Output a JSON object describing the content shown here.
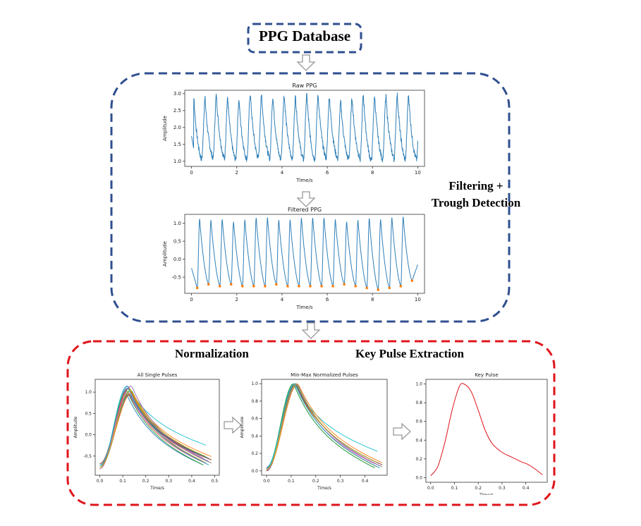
{
  "header": {
    "title": "PPG Database"
  },
  "stage_labels": {
    "filtering_line1": "Filtering +",
    "filtering_line2": "Trough Detection",
    "normalization": "Normalization",
    "key_pulse_extraction": "Key Pulse Extraction"
  },
  "colors": {
    "blue_box": "#2f4f8f",
    "red_box": "#e0141b",
    "line": "#2e7fb8",
    "trough": "#ff7f0e",
    "key": "#e0141b"
  },
  "chart_data": [
    {
      "type": "line",
      "title": "Raw PPG",
      "xlabel": "Time/s",
      "ylabel": "Amplitude",
      "xlim": [
        -0.3,
        10.3
      ],
      "ylim": [
        0.85,
        3.1
      ],
      "xticks": [
        0,
        2,
        4,
        6,
        8,
        10
      ],
      "yticks": [
        1.0,
        1.5,
        2.0,
        2.5,
        3.0
      ],
      "ytick_labels": [
        "1.0",
        "1.5",
        "2.0",
        "2.5",
        "3.0"
      ],
      "series": [
        {
          "values_desc": "quasi-periodic PPG waveform, about 19 beats in 10 s, range 1.0 to 3.0",
          "peak_times": [
            0.45,
            0.95,
            1.45,
            1.95,
            2.45,
            2.95,
            3.45,
            3.95,
            4.45,
            4.95,
            5.45,
            5.95,
            6.45,
            6.95,
            7.45,
            7.95,
            8.45,
            8.95,
            9.45
          ],
          "peak_values": [
            2.9,
            2.85,
            2.95,
            2.85,
            2.8,
            3.0,
            2.95,
            2.9,
            2.95,
            2.9,
            2.95,
            2.95,
            2.9,
            2.75,
            2.85,
            2.95,
            2.9,
            2.9,
            2.95
          ],
          "trough_values": [
            1.05,
            1.1,
            1.1,
            1.05,
            1.05,
            1.1,
            1.1,
            1.05,
            1.1,
            1.05,
            1.05,
            1.1,
            1.1,
            1.05,
            1.1,
            1.0,
            1.05,
            1.1,
            1.05
          ]
        }
      ]
    },
    {
      "type": "line",
      "title": "Filtered PPG",
      "xlabel": "Time/s",
      "ylabel": "Amplitude",
      "xlim": [
        -0.3,
        10.3
      ],
      "ylim": [
        -0.95,
        1.25
      ],
      "xticks": [
        0,
        2,
        4,
        6,
        8,
        10
      ],
      "yticks": [
        -0.5,
        0.0,
        0.5,
        1.0
      ],
      "ytick_labels": [
        "-0.5",
        "0.0",
        "0.5",
        "1.0"
      ],
      "series": [
        {
          "name": "",
          "peak_values": [
            1.1,
            1.1,
            1.1,
            1.05,
            1.1,
            1.15,
            1.15,
            1.1,
            1.1,
            1.15,
            1.15,
            1.15,
            1.1,
            1.05,
            1.1,
            1.15,
            1.1,
            1.15,
            1.15
          ],
          "trough_times": [
            0.25,
            0.75,
            1.25,
            1.75,
            2.25,
            2.75,
            3.25,
            3.75,
            4.25,
            4.75,
            5.25,
            5.75,
            6.25,
            6.75,
            7.25,
            7.75,
            8.25,
            8.75,
            9.25,
            9.75
          ],
          "trough_values": [
            -0.8,
            -0.7,
            -0.75,
            -0.7,
            -0.75,
            -0.75,
            -0.75,
            -0.7,
            -0.75,
            -0.75,
            -0.75,
            -0.75,
            -0.75,
            -0.7,
            -0.75,
            -0.8,
            -0.85,
            -0.8,
            -0.75,
            -0.6
          ]
        }
      ]
    },
    {
      "type": "line",
      "title": "All Single Pulses",
      "xlabel": "Time/s",
      "ylabel": "Amplitude",
      "xlim": [
        -0.02,
        0.52
      ],
      "ylim": [
        -0.95,
        1.3
      ],
      "xticks": [
        0.0,
        0.1,
        0.2,
        0.3,
        0.4,
        0.5
      ],
      "xtick_labels": [
        "0.0",
        "0.1",
        "0.2",
        "0.3",
        "0.4",
        "0.5"
      ],
      "yticks": [
        -0.5,
        0.0,
        0.5,
        1.0
      ],
      "ytick_labels": [
        "-0.5",
        "0.0",
        "0.5",
        "1.0"
      ],
      "n_pulses": 19
    },
    {
      "type": "line",
      "title": "Min-Max Normalized Pulses",
      "xlabel": "Time/s",
      "ylabel": "Amplitude",
      "xlim": [
        -0.02,
        0.49
      ],
      "ylim": [
        -0.05,
        1.05
      ],
      "xticks": [
        0.0,
        0.1,
        0.2,
        0.3,
        0.4
      ],
      "xtick_labels": [
        "0.0",
        "0.1",
        "0.2",
        "0.3",
        "0.4"
      ],
      "yticks": [
        0.0,
        0.2,
        0.4,
        0.6,
        0.8,
        1.0
      ],
      "ytick_labels": [
        "0.0",
        "0.2",
        "0.4",
        "0.6",
        "0.8",
        "1.0"
      ],
      "n_pulses": 19
    },
    {
      "type": "line",
      "title": "Key Pulse",
      "xlabel": "Time/s",
      "ylabel": "Amplitude",
      "xlim": [
        -0.02,
        0.49
      ],
      "ylim": [
        -0.05,
        1.05
      ],
      "xticks": [
        0.0,
        0.1,
        0.2,
        0.3,
        0.4
      ],
      "xtick_labels": [
        "0.0",
        "0.1",
        "0.2",
        "0.3",
        "0.4"
      ],
      "yticks": [
        0.0,
        0.2,
        0.4,
        0.6,
        0.8,
        1.0
      ],
      "ytick_labels": [
        "0.0",
        "0.2",
        "0.4",
        "0.6",
        "0.8",
        "1.0"
      ],
      "series": [
        {
          "x": [
            0.0,
            0.03,
            0.06,
            0.09,
            0.12,
            0.14,
            0.17,
            0.2,
            0.23,
            0.26,
            0.3,
            0.34,
            0.38,
            0.41,
            0.44,
            0.47
          ],
          "values": [
            0.02,
            0.12,
            0.38,
            0.72,
            0.97,
            1.0,
            0.92,
            0.72,
            0.5,
            0.36,
            0.27,
            0.22,
            0.17,
            0.14,
            0.09,
            0.03
          ]
        }
      ]
    }
  ]
}
